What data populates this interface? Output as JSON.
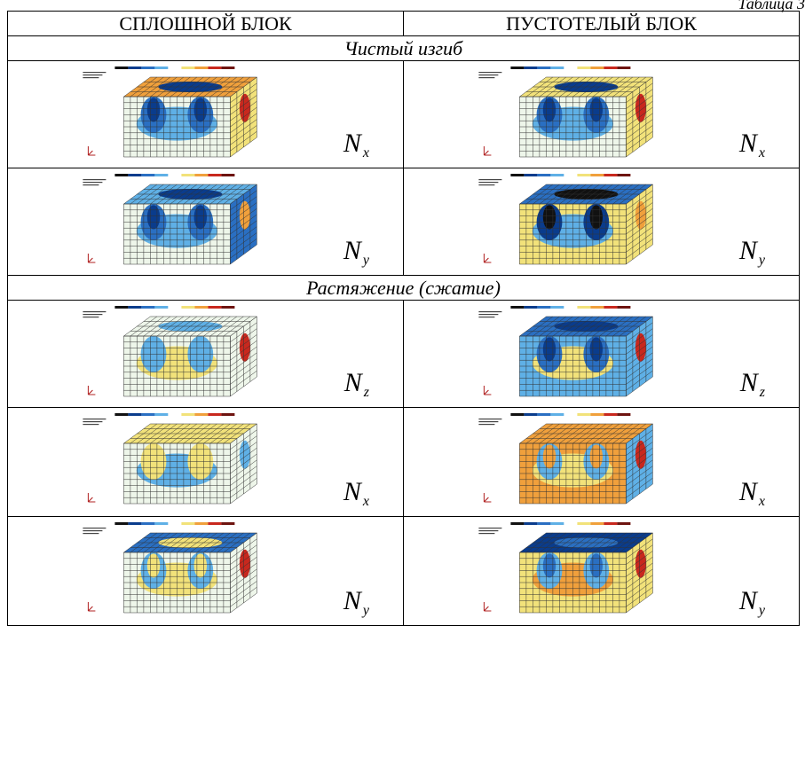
{
  "caption": "Таблица 3",
  "headers": {
    "left": "СПЛОШНОЙ БЛОК",
    "right": "ПУСТОТЕЛЫЙ БЛОК"
  },
  "sections": {
    "bending": "Чистый изгиб",
    "tension": "Растяжение (сжатие)"
  },
  "label_letter": "N",
  "rows": [
    {
      "left_sub": "x",
      "right_sub": "x"
    },
    {
      "left_sub": "y",
      "right_sub": "y"
    },
    {
      "left_sub": "z",
      "right_sub": "z"
    },
    {
      "left_sub": "x",
      "right_sub": "x"
    },
    {
      "left_sub": "y",
      "right_sub": "y"
    }
  ],
  "colors": {
    "dark_blue": "#0a3c8c",
    "blue": "#2a6fc2",
    "light_blue": "#5fb0e6",
    "pale": "#eef6ea",
    "yellow": "#f2e27a",
    "orange": "#f0a03c",
    "red": "#c8281e",
    "dark_red": "#6e1410",
    "black": "#111111"
  }
}
